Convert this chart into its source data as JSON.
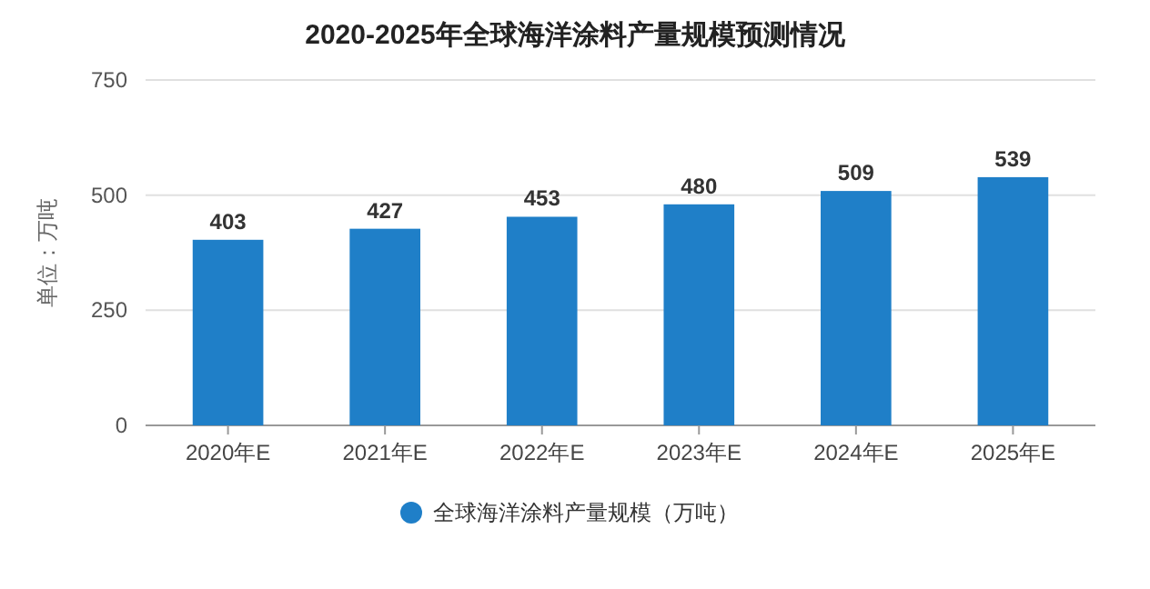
{
  "chart_data": {
    "type": "bar",
    "title": "2020-2025年全球海洋涂料产量规模预测情况",
    "categories": [
      "2020年E",
      "2021年E",
      "2022年E",
      "2023年E",
      "2024年E",
      "2025年E"
    ],
    "series": [
      {
        "name": "全球海洋涂料产量规模（万吨）",
        "color": "#1f7fc8",
        "values": [
          403,
          427,
          453,
          480,
          509,
          539
        ]
      }
    ],
    "ylabel": "单位：万吨",
    "ylim": [
      0,
      750
    ],
    "yticks": [
      0,
      250,
      500,
      750
    ],
    "grid": "y",
    "data_labels": true,
    "legend": "bottom"
  }
}
